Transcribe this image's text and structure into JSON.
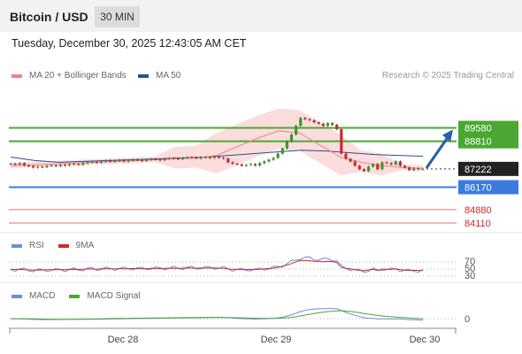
{
  "header": {
    "title": "Bitcoin / USD",
    "interval": "30 MIN",
    "datetime": "Tuesday, December 30, 2025 12:43:05 AM CET"
  },
  "legend": {
    "ma20_label": "MA 20 + Bollinger Bands",
    "ma50_label": "MA 50",
    "credit": "Research © 2025 Trading Central"
  },
  "rsi_legend": {
    "rsi_label": "RSI",
    "ma_label": "9MA"
  },
  "macd_legend": {
    "macd_label": "MACD",
    "signal_label": "MACD Signal"
  },
  "colors": {
    "green_level": "#4aa832",
    "blue_level": "#3b7be0",
    "red_level": "#e07070",
    "current_price_bg": "#222222",
    "ma20": "#f08080",
    "ma50": "#2c4f8c",
    "bollinger_fill": "#fcd9d9",
    "candle_up": "#3a9a2a",
    "candle_down": "#cc2a2a",
    "arrow": "#2a5ca8",
    "rsi": "#6a8fd8",
    "rsi_ma": "#cc2a2a",
    "macd": "#6a8fd8",
    "macd_signal": "#4aa832"
  },
  "chart_data": {
    "type": "candlestick",
    "instrument": "Bitcoin / USD",
    "x_labels": [
      "Dec 28",
      "Dec 29",
      "Dec 30"
    ],
    "price_range": [
      83600,
      92100
    ],
    "current_price": 87222,
    "levels": [
      {
        "price": 89580,
        "label": "89580",
        "kind": "resistance",
        "color": "green_level"
      },
      {
        "price": 88810,
        "label": "88810",
        "kind": "resistance",
        "color": "green_level"
      },
      {
        "price": 86170,
        "label": "86170",
        "kind": "support",
        "color": "blue_level"
      },
      {
        "price": 84880,
        "label": "84880",
        "kind": "support",
        "color": "red_level"
      },
      {
        "price": 84110,
        "label": "84110",
        "kind": "support",
        "color": "red_level"
      }
    ],
    "forecast_arrow": {
      "from": 87222,
      "to": 89580,
      "direction": "up"
    },
    "candles_close": [
      87520,
      87480,
      87550,
      87420,
      87380,
      87300,
      87350,
      87320,
      87400,
      87420,
      87380,
      87450,
      87420,
      87480,
      87500,
      87460,
      87550,
      87600,
      87620,
      87580,
      87650,
      87700,
      87640,
      87680,
      87720,
      87650,
      87700,
      87750,
      87720,
      87680,
      87740,
      87780,
      87760,
      87720,
      87800,
      87850,
      87820,
      87780,
      87860,
      87900,
      87880,
      87820,
      87900,
      87880,
      87860,
      87920,
      87860,
      87820,
      87600,
      87520,
      87480,
      87400,
      87450,
      87500,
      87420,
      87550,
      87650,
      87750,
      87850,
      88100,
      88400,
      88800,
      89200,
      89700,
      90150,
      90080,
      90020,
      89900,
      89820,
      89700,
      89850,
      89760,
      89500,
      88100,
      87800,
      87650,
      87400,
      87200,
      87100,
      87350,
      87500,
      87200,
      87600,
      87550,
      87480,
      87650,
      87400,
      87300,
      87150,
      87250,
      87200,
      87222
    ],
    "ma20_approx": [
      87400,
      87450,
      87500,
      87550,
      87600,
      87650,
      87700,
      87750,
      87800,
      87850,
      88000,
      88500,
      89000,
      89400,
      89300,
      88600,
      87900,
      87600,
      87400,
      87300,
      87250
    ],
    "ma50_approx": [
      87900,
      87700,
      87600,
      87650,
      87700,
      87750,
      87800,
      87850,
      87900,
      88000,
      88100,
      88200,
      88300,
      88250,
      88150,
      88050,
      88000,
      87950
    ],
    "rsi_levels": [
      "70",
      "50",
      "30"
    ],
    "macd_levels": [
      "0"
    ]
  }
}
